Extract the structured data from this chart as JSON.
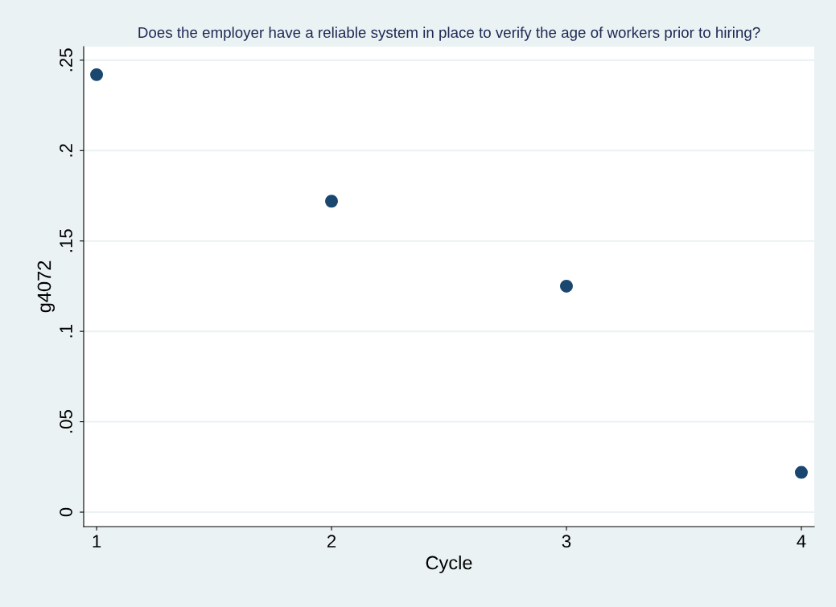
{
  "chart_data": {
    "type": "scatter",
    "title": "Does the employer have a reliable system in place to verify the age of workers prior to hiring?",
    "xlabel": "Cycle",
    "ylabel": "g4072",
    "x": [
      1,
      2,
      3,
      4
    ],
    "values": [
      0.242,
      0.172,
      0.125,
      0.022
    ],
    "color": "#1a476f",
    "marker": "circle",
    "xlim": [
      0.945,
      4.055
    ],
    "xticks": [
      1,
      2,
      3,
      4
    ],
    "ylim": [
      -0.008,
      0.2575
    ],
    "yticks": [
      {
        "value": 0,
        "label": "0"
      },
      {
        "value": 0.05,
        "label": ".05"
      },
      {
        "value": 0.1,
        "label": ".1"
      },
      {
        "value": 0.15,
        "label": ".15"
      },
      {
        "value": 0.2,
        "label": ".2"
      },
      {
        "value": 0.25,
        "label": ".25"
      }
    ],
    "grid": "y",
    "legend": false
  }
}
